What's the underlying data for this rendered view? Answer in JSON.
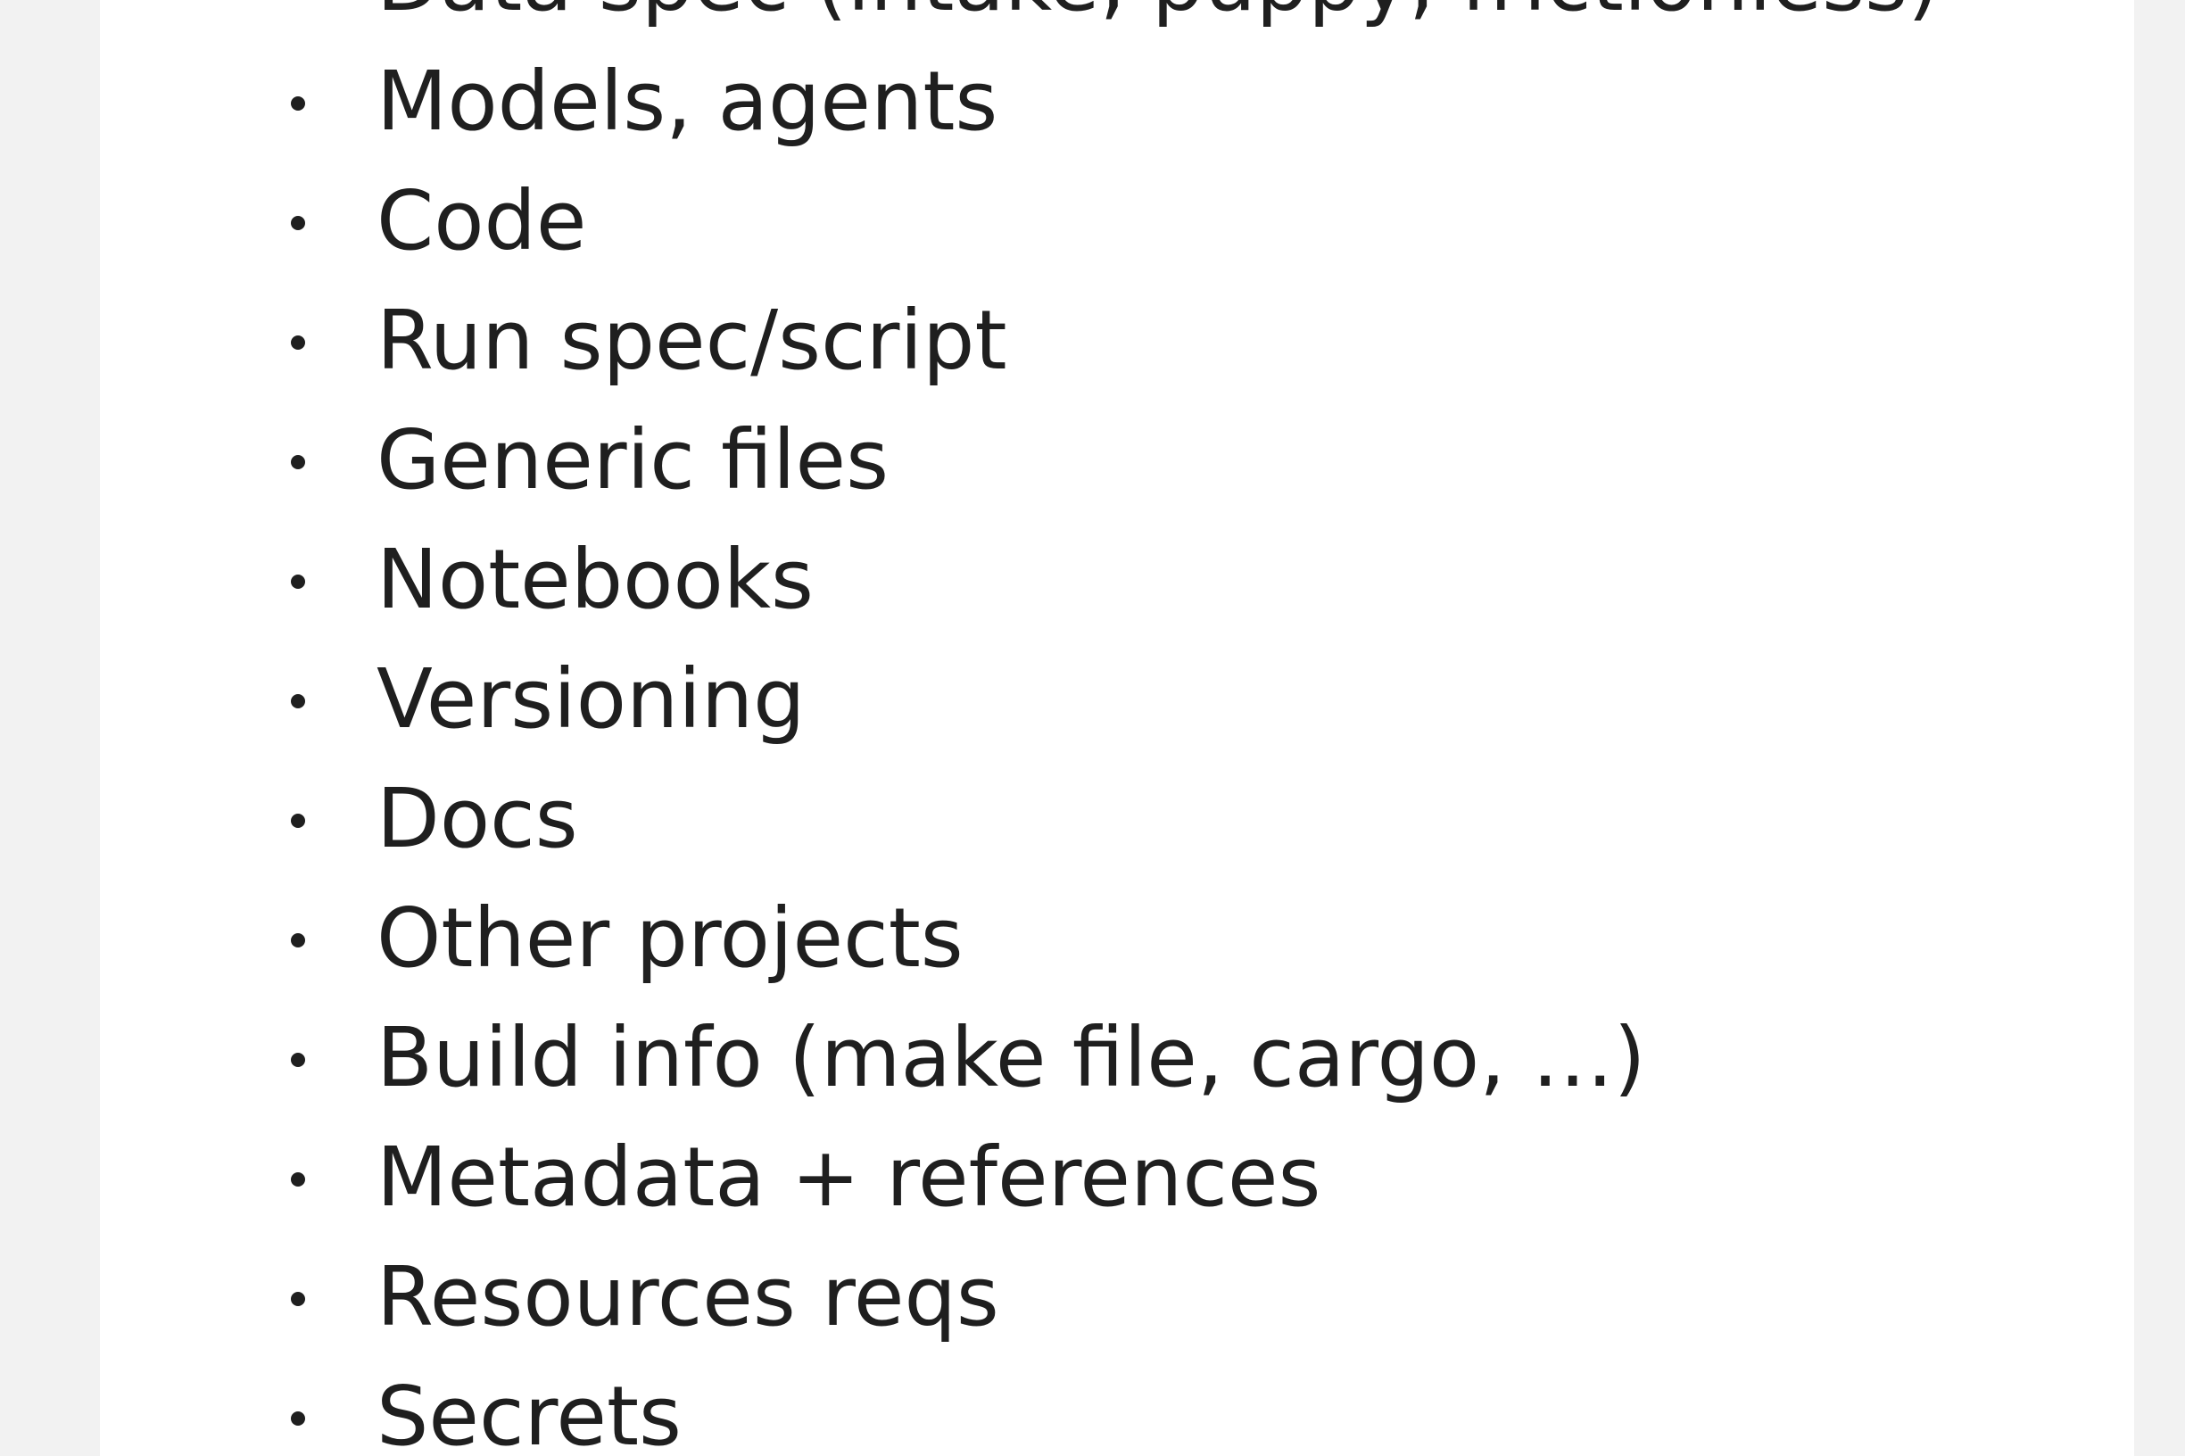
{
  "list": {
    "items": [
      "Data spec (intake, puppy, frictionless)",
      "Models, agents",
      "Code",
      "Run spec/script",
      "Generic files",
      "Notebooks",
      "Versioning",
      "Docs",
      "Other projects",
      "Build info (make file, cargo, …)",
      "Metadata + references",
      "Resources reqs",
      "Secrets"
    ]
  }
}
